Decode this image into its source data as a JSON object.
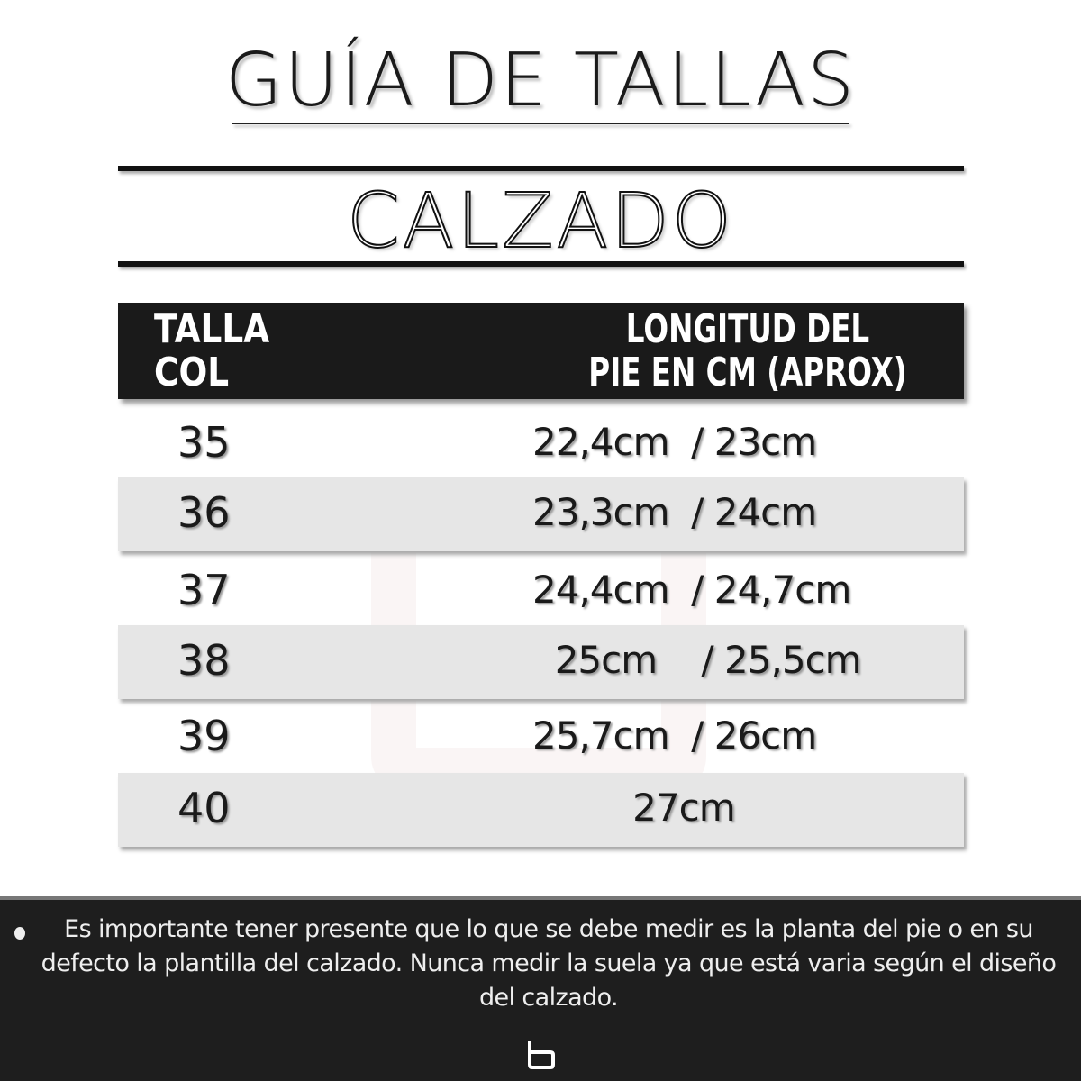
{
  "title": "GUÍA DE TALLAS",
  "subtitle": "CALZADO",
  "table": {
    "headers": {
      "size": "TALLA\nCOL",
      "length": "LONGITUD DEL\nPIE EN CM (APROX)"
    },
    "rows": [
      {
        "size": "35",
        "length": "22,4cm  / 23cm"
      },
      {
        "size": "36",
        "length": "23,3cm  / 24cm"
      },
      {
        "size": "37",
        "length": "24,4cm  / 24,7cm"
      },
      {
        "size": "38",
        "length": "  25cm    / 25,5cm"
      },
      {
        "size": "39",
        "length": "25,7cm  / 26cm"
      },
      {
        "size": "40",
        "length": "         27cm"
      }
    ]
  },
  "footer": {
    "note": "Es importante tener presente que lo que se debe medir es la planta del pie o en su defecto la plantilla del calzado. Nunca medir la suela ya que está varia según el diseño del calzado.",
    "logo": "b"
  }
}
